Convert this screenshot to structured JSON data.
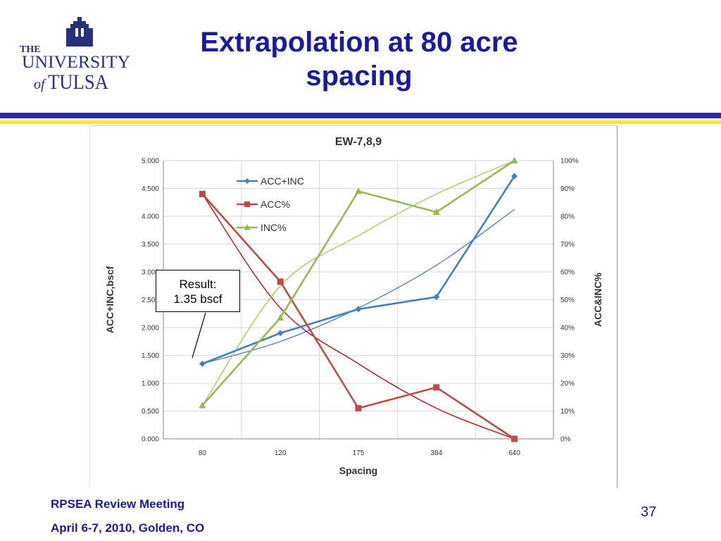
{
  "logo": {
    "the": "THE",
    "university": "UNIVERSITY",
    "of": "of",
    "tulsa": "TULSA"
  },
  "slide": {
    "title_line1": "Extrapolation at 80 acre",
    "title_line2": "spacing"
  },
  "annotation": {
    "line1": "Result:",
    "line2": "1.35 bscf"
  },
  "footer": {
    "meeting": "RPSEA Review Meeting",
    "date_location": "April 6-7, 2010, Golden, CO",
    "page_number": "37"
  },
  "colors": {
    "title": "#1a1a9c",
    "acc_inc": "#4a7ebb",
    "acc": "#be4b48",
    "inc": "#98b954",
    "trend_acc_inc": "#4a7ebb",
    "trend_acc": "#c00000",
    "trend_inc": "#92d050"
  },
  "chart_data": {
    "type": "line",
    "title": "EW-7,8,9",
    "xlabel": "Spacing",
    "ylabel": "ACC+INC,bscf",
    "y2label": "ACC&INC%",
    "categories": [
      "80",
      "120",
      "175",
      "384",
      "640"
    ],
    "ylim": [
      0,
      5
    ],
    "y2lim": [
      0,
      100
    ],
    "yticks": [
      "0.000",
      "0.500",
      "1.000",
      "1.500",
      "2.000",
      "2.500",
      "3.000",
      "3.500",
      "4.000",
      "4.500",
      "5.000"
    ],
    "y2ticks": [
      "0%",
      "10%",
      "20%",
      "30%",
      "40%",
      "50%",
      "60%",
      "70%",
      "80%",
      "90%",
      "100%"
    ],
    "grid": true,
    "legend": "top-left",
    "series": [
      {
        "name": "ACC+INC",
        "axis": "left",
        "marker": "diamond",
        "values": [
          1.35,
          1.9,
          2.33,
          2.55,
          4.72
        ]
      },
      {
        "name": "ACC%",
        "axis": "right",
        "marker": "square",
        "values": [
          88,
          56.5,
          11,
          18.5,
          0
        ]
      },
      {
        "name": "INC%",
        "axis": "right",
        "marker": "triangle",
        "values": [
          12,
          43.5,
          89,
          81.5,
          100
        ]
      }
    ],
    "trendlines": [
      {
        "series": "ACC+INC",
        "axis": "left",
        "values": [
          1.35,
          1.75,
          2.35,
          3.12,
          4.12
        ]
      },
      {
        "series": "ACC%",
        "axis": "right",
        "values": [
          88,
          47,
          27,
          11,
          0
        ]
      },
      {
        "series": "INC%",
        "axis": "right",
        "values": [
          12,
          55,
          73,
          88,
          100
        ]
      }
    ]
  }
}
